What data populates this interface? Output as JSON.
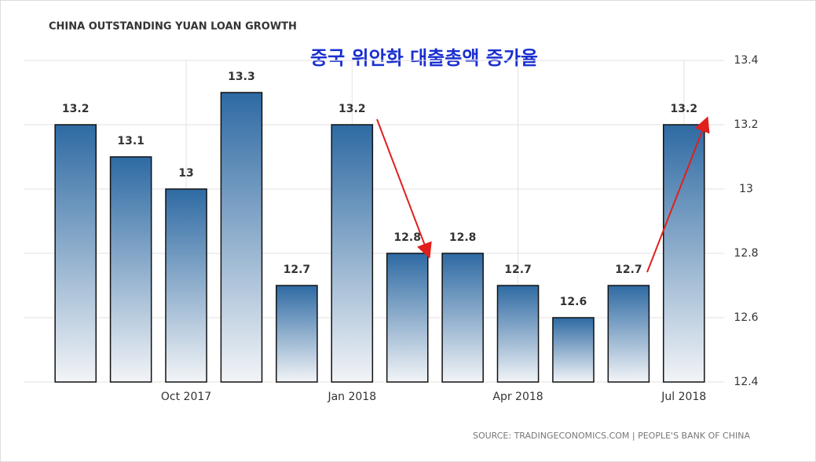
{
  "chart_data": {
    "type": "bar",
    "title": "CHINA OUTSTANDING YUAN LOAN GROWTH",
    "subtitle": "중국 위안화 대출총액 증가율",
    "source": "SOURCE: TRADINGECONOMICS.COM | PEOPLE'S BANK OF CHINA",
    "categories": [
      null,
      null,
      "Oct 2017",
      null,
      null,
      "Jan 2018",
      null,
      null,
      "Apr 2018",
      null,
      null,
      "Jul 2018"
    ],
    "values": [
      13.2,
      13.1,
      13,
      13.3,
      12.7,
      13.2,
      12.8,
      12.8,
      12.7,
      12.6,
      12.7,
      13.2
    ],
    "color": "#2e6aa3",
    "ylim": [
      12.4,
      13.4
    ],
    "yticks": [
      12.4,
      12.6,
      12.8,
      13,
      13.2,
      13.4
    ],
    "grid": true
  }
}
